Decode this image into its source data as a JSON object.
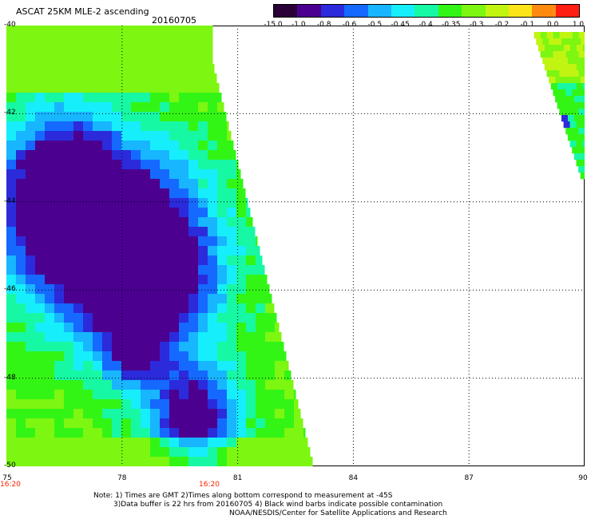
{
  "header": {
    "title": "ASCAT 25KM MLE-2 ascending",
    "date": "20160705"
  },
  "colorbar": {
    "labels": [
      "-15.0",
      "-1.0",
      "-0.8",
      "-0.6",
      "-0.5",
      "-0.45",
      "-0.4",
      "-0.35",
      "-0.3",
      "-0.2",
      "-0.1",
      "0.0",
      "1.0"
    ],
    "colors": [
      "#2a0038",
      "#4b0090",
      "#2b2bdc",
      "#1569ff",
      "#17b6ff",
      "#16eefc",
      "#17f8a4",
      "#33f515",
      "#7df611",
      "#c1f511",
      "#fbe41a",
      "#ff8a12",
      "#ff1e12"
    ]
  },
  "map": {
    "lon_range": [
      75,
      90
    ],
    "lat_range": [
      -40,
      -50
    ],
    "x_ticks": [
      "75",
      "78",
      "81",
      "84",
      "87",
      "90"
    ],
    "y_ticks": [
      "-40",
      "-42",
      "-44",
      "-46",
      "-48",
      "-50"
    ],
    "times": [
      "16:20",
      "16:20"
    ],
    "grid": "dotted"
  },
  "notes": {
    "line1": "Note: 1) Times are GMT 2)Times along bottom correspond to measurement at -45S",
    "line2": "3)Data buffer is 22 hrs from 20160705 4) Black wind barbs indicate possible contamination",
    "line3": "NOAA/NESDIS/Center for Satellite Applications and Research"
  }
}
